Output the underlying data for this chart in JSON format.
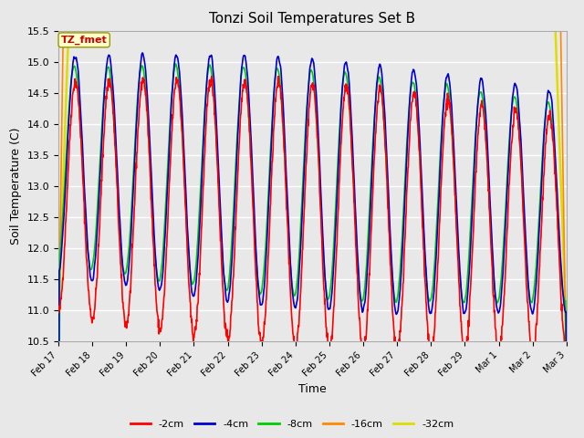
{
  "title": "Tonzi Soil Temperatures Set B",
  "xlabel": "Time",
  "ylabel": "Soil Temperature (C)",
  "ylim": [
    10.5,
    15.5
  ],
  "ylim_display": [
    10.5,
    15.5
  ],
  "legend_label": "TZ_fmet",
  "plot_bg": "#e8e8e8",
  "fig_bg": "#e8e8e8",
  "series": {
    "-2cm": {
      "color": "#ff0000",
      "lw": 1.2
    },
    "-4cm": {
      "color": "#0000cc",
      "lw": 1.2
    },
    "-8cm": {
      "color": "#00cc00",
      "lw": 1.2
    },
    "-16cm": {
      "color": "#ff8800",
      "lw": 1.2
    },
    "-32cm": {
      "color": "#dddd00",
      "lw": 1.8
    }
  },
  "xtick_labels": [
    "Feb 17",
    "Feb 18",
    "Feb 19",
    "Feb 20",
    "Feb 21",
    "Feb 22",
    "Feb 23",
    "Feb 24",
    "Feb 25",
    "Feb 26",
    "Feb 27",
    "Feb 28",
    "Feb 29",
    "Mar 1",
    "Mar 2",
    "Mar 3"
  ],
  "num_points": 1440
}
